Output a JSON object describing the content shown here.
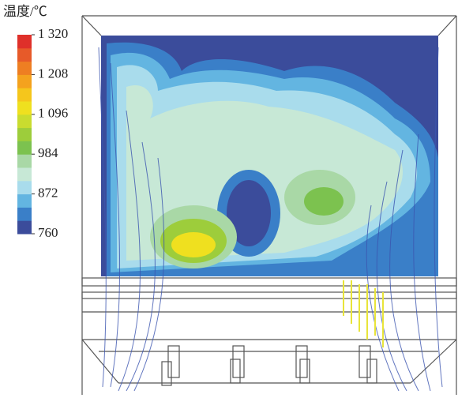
{
  "chart_data": {
    "type": "colorbar",
    "title": "温度/℃",
    "lim": [
      760,
      1320
    ],
    "ticks": [
      {
        "value": 1320,
        "label": "1 320"
      },
      {
        "value": 1208,
        "label": "1 208"
      },
      {
        "value": 1096,
        "label": "1 096"
      },
      984,
      872,
      760
    ],
    "colors": [
      "#3b4c9b",
      "#3a7fc8",
      "#63b5e1",
      "#a9dcec",
      "#c7e8d6",
      "#a9d8a6",
      "#7cc24f",
      "#9dcd3b",
      "#c9dc2f",
      "#efe01f",
      "#f5c61c",
      "#f4a21e",
      "#ee7e22",
      "#e75a29",
      "#df302a"
    ]
  }
}
